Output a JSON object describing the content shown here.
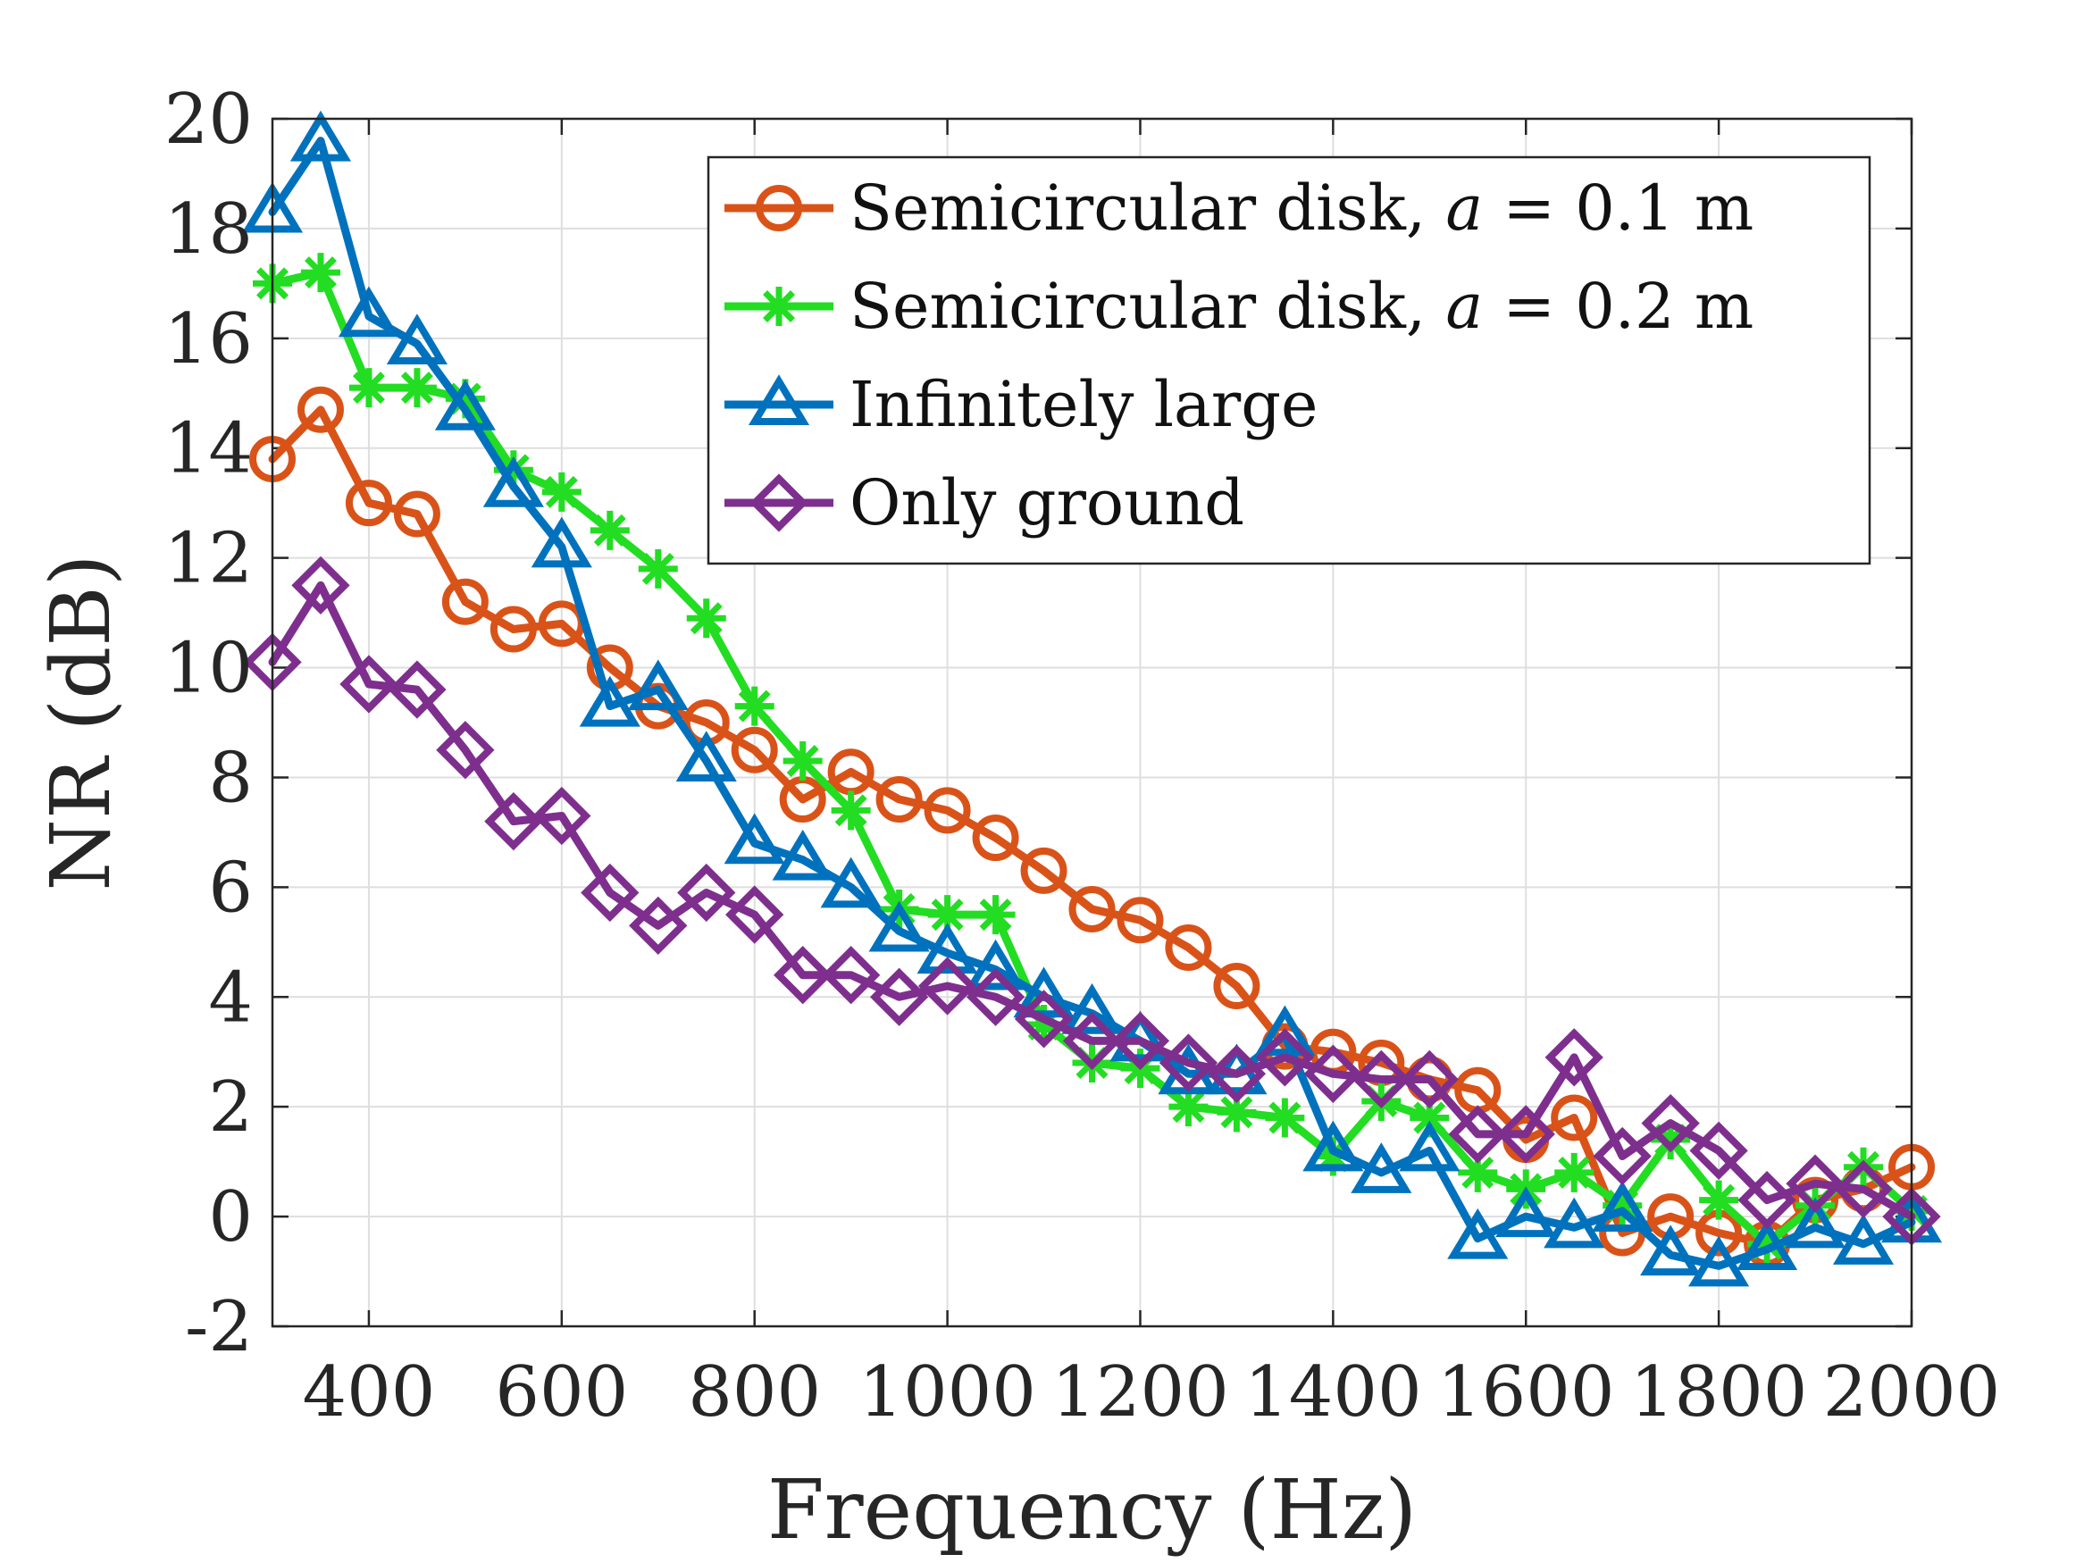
{
  "chart_data": {
    "type": "line",
    "title": "",
    "xlabel": "Frequency (Hz)",
    "ylabel": "NR (dB)",
    "xlim": [
      300,
      2000
    ],
    "ylim": [
      -2,
      20
    ],
    "xticks": [
      400,
      600,
      800,
      1000,
      1200,
      1400,
      1600,
      1800,
      2000
    ],
    "xtick_labels": [
      "400",
      "600",
      "800",
      "1000",
      "1200",
      "1400",
      "1600",
      "1800",
      "2000"
    ],
    "yticks": [
      -2,
      0,
      2,
      4,
      6,
      8,
      10,
      12,
      14,
      16,
      18,
      20
    ],
    "ytick_labels": [
      "-2",
      "0",
      "2",
      "4",
      "6",
      "8",
      "10",
      "12",
      "14",
      "16",
      "18",
      "20"
    ],
    "grid": true,
    "legend_position": "top-right",
    "x": [
      300,
      350,
      400,
      450,
      500,
      550,
      600,
      650,
      700,
      750,
      800,
      850,
      900,
      950,
      1000,
      1050,
      1100,
      1150,
      1200,
      1250,
      1300,
      1350,
      1400,
      1450,
      1500,
      1550,
      1600,
      1650,
      1700,
      1750,
      1800,
      1850,
      1900,
      1950,
      2000
    ],
    "series": [
      {
        "name": "Semicircular disk, a = 0.1 m",
        "legend_prefix": "Semicircular disk, ",
        "legend_var": "a",
        "legend_suffix": " = 0.1 m",
        "color": "#D95319",
        "marker": "circle",
        "values": [
          13.8,
          14.7,
          13.0,
          12.8,
          11.2,
          10.7,
          10.8,
          10.0,
          9.3,
          9.0,
          8.5,
          7.6,
          8.1,
          7.6,
          7.4,
          6.9,
          6.3,
          5.6,
          5.4,
          4.9,
          4.2,
          3.1,
          3.0,
          2.8,
          2.5,
          2.3,
          1.4,
          1.8,
          -0.3,
          0.0,
          -0.3,
          -0.5,
          0.3,
          0.5,
          0.9
        ]
      },
      {
        "name": "Semicircular disk, a = 0.2 m",
        "legend_prefix": "Semicircular disk, ",
        "legend_var": "a",
        "legend_suffix": " = 0.2 m",
        "color": "#22DD22",
        "marker": "asterisk",
        "values": [
          17.0,
          17.2,
          15.1,
          15.1,
          14.9,
          13.6,
          13.2,
          12.5,
          11.8,
          10.9,
          9.3,
          8.3,
          7.4,
          5.6,
          5.5,
          5.5,
          3.5,
          2.8,
          2.7,
          2.0,
          1.9,
          1.8,
          1.1,
          2.1,
          1.8,
          0.8,
          0.5,
          0.8,
          0.2,
          1.4,
          0.3,
          -0.5,
          0.2,
          0.9,
          0.1
        ]
      },
      {
        "name": "Infinitely large",
        "legend_prefix": "Infinitely large",
        "legend_var": "",
        "legend_suffix": "",
        "color": "#0072BD",
        "marker": "triangle",
        "values": [
          18.3,
          19.6,
          16.4,
          15.9,
          14.7,
          13.3,
          12.2,
          9.3,
          9.6,
          8.3,
          6.8,
          6.5,
          6.0,
          5.2,
          4.8,
          4.5,
          4.0,
          3.7,
          3.2,
          2.6,
          2.6,
          3.3,
          1.2,
          0.8,
          1.2,
          -0.4,
          0.0,
          -0.2,
          0.1,
          -0.7,
          -0.9,
          -0.6,
          -0.2,
          -0.5,
          -0.1
        ]
      },
      {
        "name": "Only ground",
        "legend_prefix": "Only ground",
        "legend_var": "",
        "legend_suffix": "",
        "color": "#7E2F8E",
        "marker": "diamond",
        "values": [
          10.1,
          11.5,
          9.7,
          9.6,
          8.5,
          7.2,
          7.3,
          5.9,
          5.3,
          5.9,
          5.5,
          4.4,
          4.4,
          4.0,
          4.2,
          4.0,
          3.6,
          3.2,
          3.2,
          2.8,
          2.6,
          2.9,
          2.6,
          2.5,
          2.5,
          1.5,
          1.5,
          2.9,
          1.1,
          1.7,
          1.2,
          0.3,
          0.6,
          0.5,
          0.0
        ]
      }
    ]
  }
}
